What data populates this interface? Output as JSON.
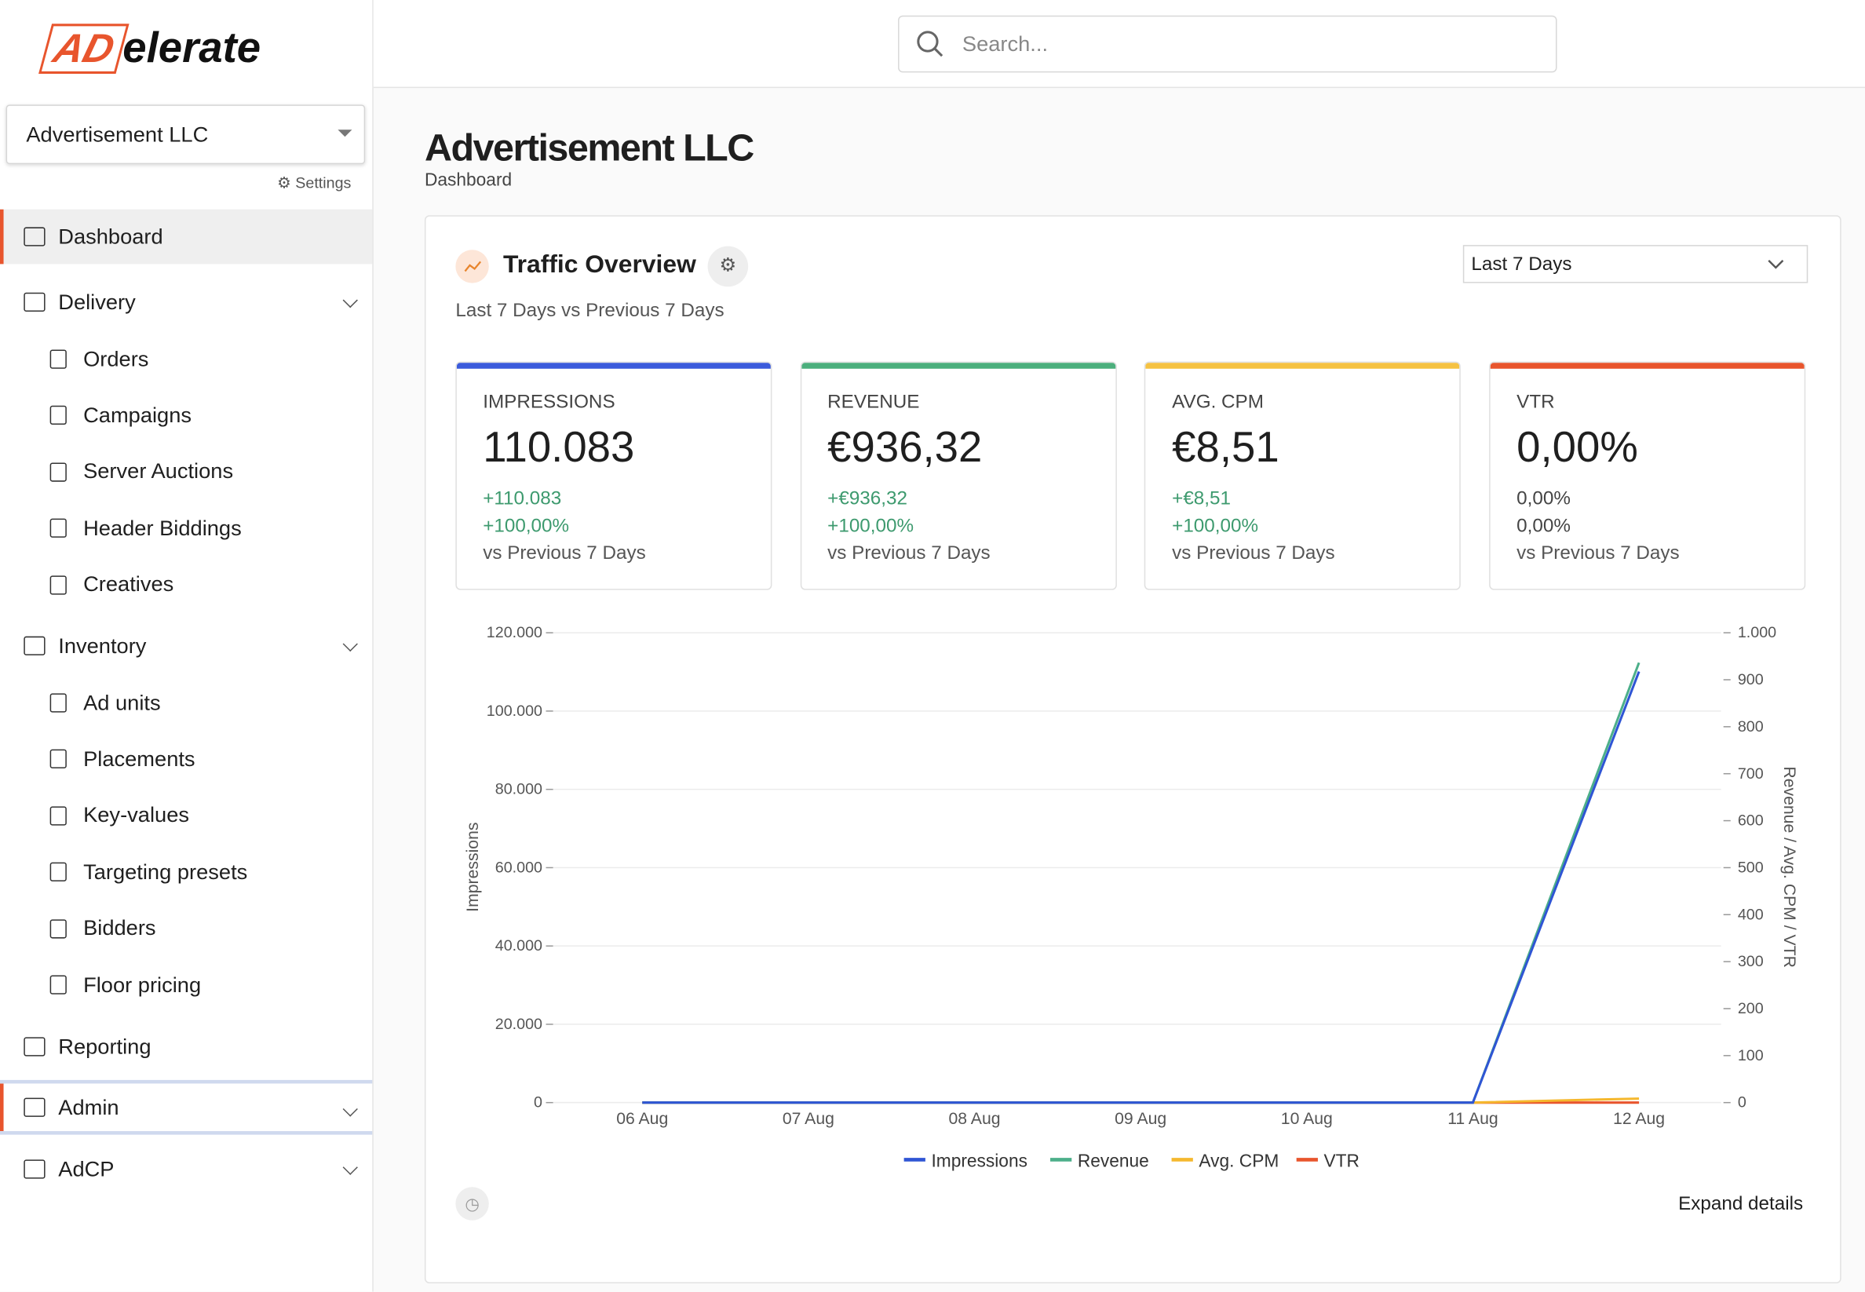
{
  "logo": {
    "mark": "AD",
    "rest": "elerate"
  },
  "org": {
    "name": "Advertisement LLC",
    "settings": "Settings"
  },
  "nav": [
    {
      "label": "Dashboard"
    },
    {
      "label": "Delivery",
      "children": [
        "Orders",
        "Campaigns",
        "Server Auctions",
        "Header Biddings",
        "Creatives"
      ]
    },
    {
      "label": "Inventory",
      "children": [
        "Ad units",
        "Placements",
        "Key-values",
        "Targeting presets",
        "Bidders",
        "Floor pricing"
      ]
    },
    {
      "label": "Reporting"
    },
    {
      "label": "Admin",
      "expandable": true
    },
    {
      "label": "AdCP",
      "expandable": true
    }
  ],
  "search": {
    "placeholder": "Search..."
  },
  "page": {
    "title": "Advertisement LLC",
    "breadcrumb": "Dashboard"
  },
  "panel": {
    "title": "Traffic Overview",
    "subtitle": "Last 7 Days vs Previous 7 Days",
    "range": "Last 7 Days",
    "expand": "Expand details"
  },
  "kpis": [
    {
      "label": "IMPRESSIONS",
      "value": "110.083",
      "delta": "+110.083",
      "pct": "+100,00%",
      "note": "vs Previous 7 Days",
      "color": "#3b5bdb",
      "positive": true
    },
    {
      "label": "REVENUE",
      "value": "€936,32",
      "delta": "+€936,32",
      "pct": "+100,00%",
      "note": "vs Previous 7 Days",
      "color": "#4caf7d",
      "positive": true
    },
    {
      "label": "AVG. CPM",
      "value": "€8,51",
      "delta": "+€8,51",
      "pct": "+100,00%",
      "note": "vs Previous 7 Days",
      "color": "#f5c242",
      "positive": true
    },
    {
      "label": "VTR",
      "value": "0,00%",
      "delta": "0,00%",
      "pct": "0,00%",
      "note": "vs Previous 7 Days",
      "color": "#e8552d",
      "positive": false
    }
  ],
  "chart_data": {
    "type": "line",
    "y_label": "Impressions",
    "y2_label": "Revenue / Avg. CPM / VTR",
    "categories": [
      "06 Aug",
      "07 Aug",
      "08 Aug",
      "09 Aug",
      "10 Aug",
      "11 Aug",
      "12 Aug"
    ],
    "series": [
      {
        "name": "Impressions",
        "color": "#2f55d4",
        "values": [
          0,
          0,
          0,
          0,
          0,
          0,
          110083
        ]
      },
      {
        "name": "Revenue",
        "color": "#4caf8a",
        "axis": "y2",
        "values": [
          0,
          0,
          0,
          0,
          0,
          0,
          936.32
        ]
      },
      {
        "name": "Avg. CPM",
        "color": "#f5b82e",
        "axis": "y2",
        "values": [
          0,
          0,
          0,
          0,
          0,
          0,
          8.51
        ]
      },
      {
        "name": "VTR",
        "color": "#e8552d",
        "axis": "y2",
        "values": [
          0,
          0,
          0,
          0,
          0,
          0,
          0
        ]
      }
    ],
    "ylim": [
      0,
      120000
    ],
    "yticks": [
      0,
      {
        "value": 20000,
        "label": "20.000"
      },
      {
        "value": 40000,
        "label": "40.000"
      },
      {
        "value": 60000,
        "label": "60.000"
      },
      {
        "value": 80000,
        "label": "80.000"
      },
      {
        "value": 100000,
        "label": "100.000"
      },
      {
        "value": 120000,
        "label": "120.000"
      }
    ],
    "y2lim": [
      0,
      1000
    ],
    "y2ticks": [
      0,
      100,
      200,
      300,
      400,
      500,
      600,
      700,
      800,
      900,
      {
        "value": 1000,
        "label": "1.000"
      }
    ],
    "grid": true
  }
}
